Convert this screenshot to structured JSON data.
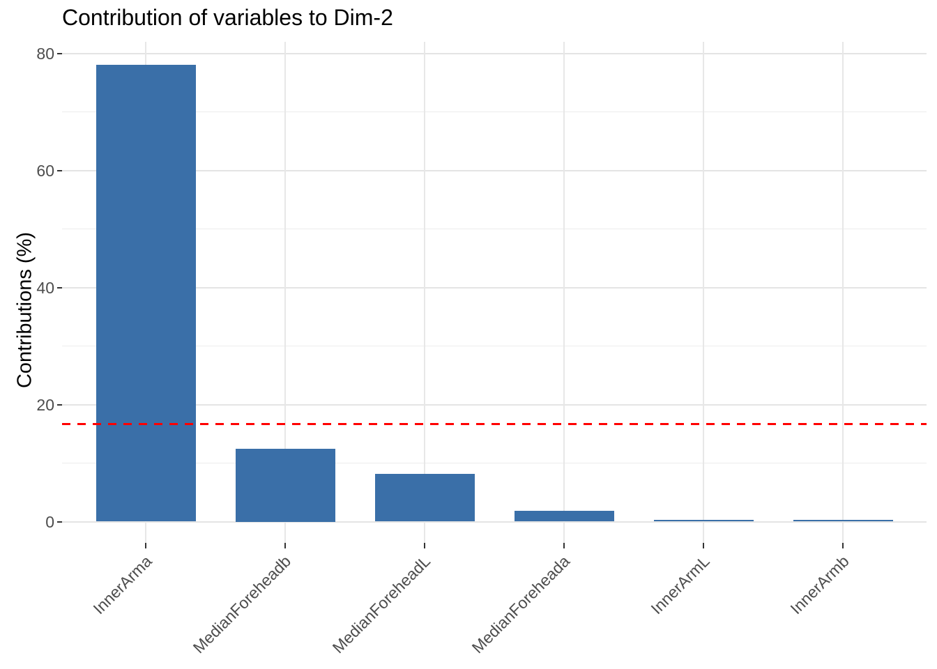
{
  "chart_data": {
    "type": "bar",
    "title": "Contribution of variables to Dim-2",
    "xlabel": "",
    "ylabel": "Contributions (%)",
    "categories": [
      "InnerArma",
      "MedianForeheadb",
      "MedianForeheadL",
      "MedianForeheada",
      "InnerArmL",
      "InnerArmb"
    ],
    "values": [
      78,
      12.5,
      8.2,
      1.8,
      0.3,
      0.3
    ],
    "ylim": [
      0,
      80
    ],
    "y_major_ticks": [
      0,
      20,
      40,
      60,
      80
    ],
    "y_minor_gridlines": [
      10,
      30,
      50,
      70
    ],
    "x_tick_label_angle": 45,
    "grid": "horizontal major+minor, vertical major at category centers",
    "legend_position": "none",
    "reference_line": {
      "value": 16.67,
      "color": "#FF0000",
      "style": "dashed"
    },
    "bar_color": "#3A6FA8"
  },
  "colors": {
    "background": "#FFFFFF",
    "bar_fill": "#3A6FA8",
    "grid_major": "#E4E4E4",
    "grid_minor": "#ECECEC",
    "axis_text": "#4D4D4D",
    "title_text": "#000000",
    "tick_mark": "#333333",
    "reference_line": "#FF0000"
  }
}
